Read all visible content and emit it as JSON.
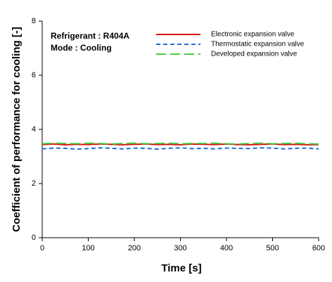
{
  "chart_data": {
    "type": "line",
    "xlabel": "Time [s]",
    "ylabel": "Coefficient of performance for cooling [-]",
    "annotations": [
      "Refrigerant : R404A",
      "Mode : Cooling"
    ],
    "x": [
      0,
      25,
      50,
      75,
      100,
      125,
      150,
      175,
      200,
      225,
      250,
      275,
      300,
      325,
      350,
      375,
      400,
      425,
      450,
      475,
      500,
      525,
      550,
      575,
      600
    ],
    "series": [
      {
        "name": "Electronic expansion valve",
        "color": "#e01010",
        "dash": "none",
        "values": [
          3.44,
          3.46,
          3.43,
          3.45,
          3.44,
          3.46,
          3.45,
          3.43,
          3.45,
          3.46,
          3.44,
          3.45,
          3.43,
          3.46,
          3.45,
          3.44,
          3.46,
          3.44,
          3.43,
          3.45,
          3.46,
          3.44,
          3.45,
          3.43,
          3.44
        ]
      },
      {
        "name": "Thermostatic expansion valve",
        "color": "#1e6fd9",
        "dash": "6 4",
        "values": [
          3.28,
          3.31,
          3.3,
          3.27,
          3.29,
          3.32,
          3.3,
          3.28,
          3.31,
          3.3,
          3.27,
          3.3,
          3.32,
          3.29,
          3.3,
          3.28,
          3.31,
          3.3,
          3.29,
          3.32,
          3.31,
          3.28,
          3.3,
          3.31,
          3.28
        ]
      },
      {
        "name": "Developed expansion valve",
        "color": "#44cc44",
        "dash": "14 6",
        "values": [
          3.47,
          3.49,
          3.48,
          3.47,
          3.49,
          3.48,
          3.46,
          3.48,
          3.49,
          3.47,
          3.48,
          3.49,
          3.47,
          3.48,
          3.48,
          3.49,
          3.47,
          3.46,
          3.48,
          3.49,
          3.47,
          3.48,
          3.49,
          3.47,
          3.46
        ]
      }
    ],
    "xlim": [
      0,
      600
    ],
    "xticks": [
      0,
      100,
      200,
      300,
      400,
      500,
      600
    ],
    "ylim": [
      0,
      8
    ],
    "yticks": [
      0,
      2,
      4,
      6,
      8
    ],
    "legend": "upper right"
  }
}
